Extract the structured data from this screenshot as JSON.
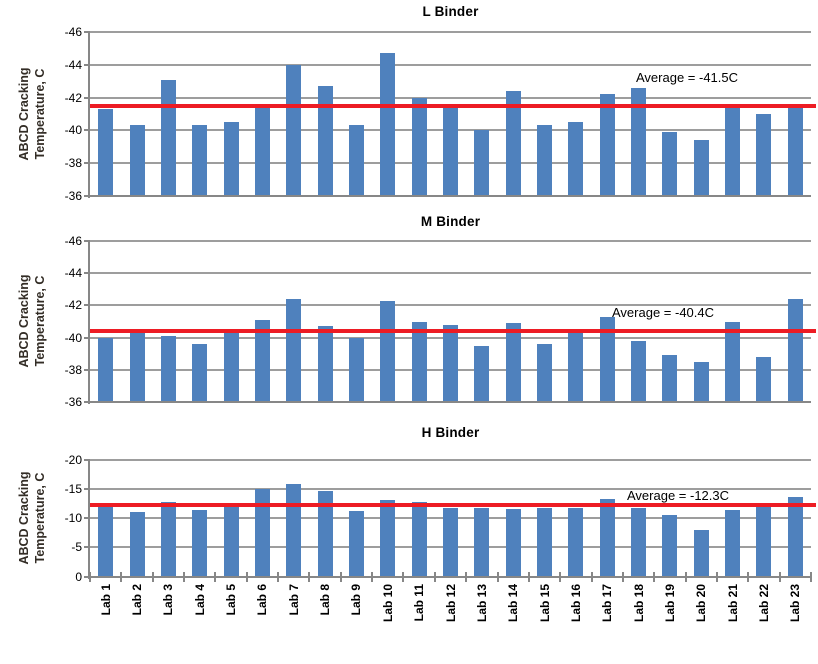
{
  "figure": {
    "background": "#ffffff",
    "y_axis_title": "ABCD Cracking Temperature, C",
    "y_axis_title_lines": [
      "ABCD Cracking",
      "Temperature, C"
    ]
  },
  "colors": {
    "bar": "#4f81bd",
    "average_line": "#ed1c24",
    "gridline": "#9d9d9d",
    "axis": "#878787",
    "title_text": "#000000",
    "axis_title_text": "#332d26",
    "tick_text": "#000000",
    "annotation_text": "#000000"
  },
  "chart_data": [
    {
      "type": "bar",
      "title": "L Binder",
      "ylabel": "ABCD Cracking Temperature, C",
      "ylabel_lines": [
        "ABCD Cracking",
        "Temperature, C"
      ],
      "categories": [
        "Lab 1",
        "Lab 2",
        "Lab 3",
        "Lab 4",
        "Lab 5",
        "Lab 6",
        "Lab 7",
        "Lab 8",
        "Lab 9",
        "Lab 10",
        "Lab 11",
        "Lab 12",
        "Lab 13",
        "Lab 14",
        "Lab 15",
        "Lab 16",
        "Lab 17",
        "Lab 18",
        "Lab 19",
        "Lab 20",
        "Lab 21",
        "Lab 22",
        "Lab 23"
      ],
      "values": [
        -41.3,
        -40.3,
        -43.1,
        -40.3,
        -40.5,
        -41.6,
        -44.0,
        -42.7,
        -40.3,
        -44.7,
        -42.0,
        -41.4,
        -40.0,
        -42.4,
        -40.3,
        -40.5,
        -42.2,
        -42.6,
        -39.9,
        -39.4,
        -41.4,
        -41.0,
        -41.4
      ],
      "average": -41.5,
      "annotation": "Average = -41.5C",
      "ylim": [
        -46,
        -36
      ],
      "y_axis_reversed": true,
      "yticks": [
        -46,
        -44,
        -42,
        -40,
        -38,
        -36
      ],
      "grid": true,
      "legend": "none"
    },
    {
      "type": "bar",
      "title": "M Binder",
      "ylabel": "ABCD Cracking Temperature, C",
      "ylabel_lines": [
        "ABCD Cracking",
        "Temperature, C"
      ],
      "categories": [
        "Lab 1",
        "Lab 2",
        "Lab 3",
        "Lab 4",
        "Lab 5",
        "Lab 6",
        "Lab 7",
        "Lab 8",
        "Lab 9",
        "Lab 10",
        "Lab 11",
        "Lab 12",
        "Lab 13",
        "Lab 14",
        "Lab 15",
        "Lab 16",
        "Lab 17",
        "Lab 18",
        "Lab 19",
        "Lab 20",
        "Lab 21",
        "Lab 22",
        "Lab 23"
      ],
      "values": [
        -40.0,
        -40.5,
        -40.1,
        -39.6,
        -40.3,
        -41.1,
        -42.4,
        -40.7,
        -40.0,
        -42.3,
        -41.0,
        -40.8,
        -39.5,
        -40.9,
        -39.6,
        -40.3,
        -41.3,
        -39.8,
        -38.9,
        -38.5,
        -41.0,
        -38.8,
        -42.4
      ],
      "average": -40.4,
      "annotation": "Average = -40.4C",
      "ylim": [
        -46,
        -36
      ],
      "y_axis_reversed": true,
      "yticks": [
        -46,
        -44,
        -42,
        -40,
        -38,
        -36
      ],
      "grid": true,
      "legend": "none"
    },
    {
      "type": "bar",
      "title": "H Binder",
      "ylabel": "ABCD Cracking Temperature, C",
      "ylabel_lines": [
        "ABCD Cracking",
        "Temperature, C"
      ],
      "categories": [
        "Lab 1",
        "Lab 2",
        "Lab 3",
        "Lab 4",
        "Lab 5",
        "Lab 6",
        "Lab 7",
        "Lab 8",
        "Lab 9",
        "Lab 10",
        "Lab 11",
        "Lab 12",
        "Lab 13",
        "Lab 14",
        "Lab 15",
        "Lab 16",
        "Lab 17",
        "Lab 18",
        "Lab 19",
        "Lab 20",
        "Lab 21",
        "Lab 22",
        "Lab 23"
      ],
      "values": [
        -11.9,
        -11.0,
        -12.8,
        -11.5,
        -11.9,
        -15.0,
        -15.8,
        -14.7,
        -11.3,
        -13.2,
        -12.8,
        -11.7,
        -11.7,
        -11.6,
        -11.7,
        -11.7,
        -13.3,
        -11.7,
        -10.6,
        -8.0,
        -11.5,
        -11.9,
        -13.7
      ],
      "average": -12.3,
      "annotation": "Average = -12.3C",
      "ylim": [
        -20,
        0
      ],
      "y_axis_reversed": true,
      "yticks": [
        -20,
        -15,
        -10,
        -5,
        0
      ],
      "grid": true,
      "legend": "none"
    }
  ]
}
